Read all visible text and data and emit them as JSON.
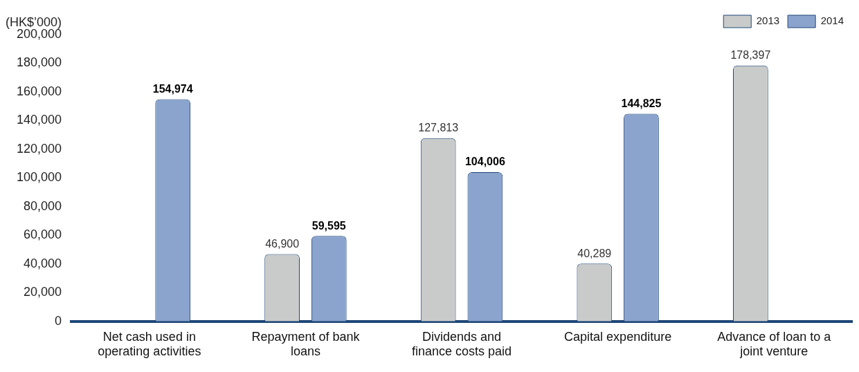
{
  "chart_data": {
    "type": "bar",
    "ylabel": "(HK$’000)",
    "categories": [
      "Net cash used in operating activities",
      "Repayment of bank loans",
      "Dividends and finance costs paid",
      "Capital expenditure",
      "Advance of loan to a joint venture"
    ],
    "series": [
      {
        "name": "2013",
        "color": "#c9cbca",
        "values": [
          null,
          46900,
          127813,
          40289,
          178397
        ],
        "value_labels": [
          null,
          "46,900",
          "127,813",
          "40,289",
          "178,397"
        ]
      },
      {
        "name": "2014",
        "color": "#8ba4cd",
        "values": [
          154974,
          59595,
          104006,
          144825,
          null
        ],
        "value_labels": [
          "154,974",
          "59,595",
          "104,006",
          "144,825",
          null
        ]
      }
    ],
    "ylim": [
      0,
      200000
    ],
    "yticks": [
      0,
      {
        "value": 20000,
        "label": "20,000"
      },
      {
        "value": 40000,
        "label": "40,000"
      },
      {
        "value": 60000,
        "label": "60,000"
      },
      {
        "value": 80000,
        "label": "80,000"
      },
      {
        "value": 100000,
        "label": "100,000"
      },
      {
        "value": 120000,
        "label": "120,000"
      },
      {
        "value": 140000,
        "label": "140,000"
      },
      {
        "value": 160000,
        "label": "160,000"
      },
      {
        "value": 180000,
        "label": "180,000"
      },
      {
        "value": 200000,
        "label": "200,000"
      }
    ],
    "grid": false,
    "legend": "top right"
  }
}
